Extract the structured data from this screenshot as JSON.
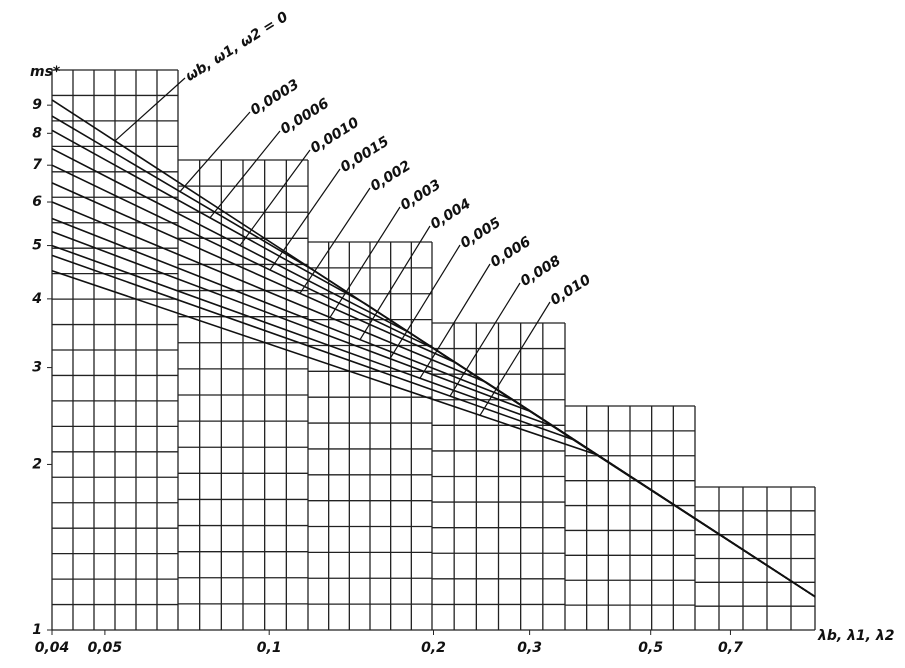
{
  "chart_data": {
    "type": "line",
    "y_label": "ms*",
    "x_label": "λb, λ1, λ2",
    "xscale": "log",
    "yscale": "log",
    "xlim": [
      0.04,
      1.0
    ],
    "ylim": [
      1,
      10
    ],
    "xticks": [
      {
        "value": 0.04,
        "label": "0,04"
      },
      {
        "value": 0.05,
        "label": "0,05"
      },
      {
        "value": 0.1,
        "label": "0,1"
      },
      {
        "value": 0.2,
        "label": "0,2"
      },
      {
        "value": 0.3,
        "label": "0,3"
      },
      {
        "value": 0.5,
        "label": "0,5"
      },
      {
        "value": 0.7,
        "label": "0,7"
      }
    ],
    "yticks": [
      1,
      2,
      3,
      4,
      5,
      6,
      7,
      8,
      9
    ],
    "series": [
      {
        "name": "ωb, ω1, ω2 = 0",
        "color": "#111111",
        "x": [
          0.04,
          1.0
        ],
        "values": [
          9.2,
          1.15
        ]
      },
      {
        "name": "0,0003",
        "color": "#111111",
        "x": [
          0.04,
          0.12,
          1.0
        ],
        "values": [
          8.6,
          4.52,
          1.15
        ]
      },
      {
        "name": "0,0006",
        "color": "#111111",
        "x": [
          0.04,
          0.15,
          1.0
        ],
        "values": [
          8.1,
          3.92,
          1.15
        ]
      },
      {
        "name": "0,0010",
        "color": "#111111",
        "x": [
          0.04,
          0.18,
          1.0
        ],
        "values": [
          7.5,
          3.48,
          1.15
        ]
      },
      {
        "name": "0,0015",
        "color": "#111111",
        "x": [
          0.04,
          0.2,
          1.0
        ],
        "values": [
          7.0,
          3.25,
          1.15
        ]
      },
      {
        "name": "0,002",
        "color": "#111111",
        "x": [
          0.04,
          0.22,
          1.0
        ],
        "values": [
          6.5,
          3.06,
          1.15
        ]
      },
      {
        "name": "0,003",
        "color": "#111111",
        "x": [
          0.04,
          0.25,
          1.0
        ],
        "values": [
          6.0,
          2.82,
          1.15
        ]
      },
      {
        "name": "0,004",
        "color": "#111111",
        "x": [
          0.04,
          0.28,
          1.0
        ],
        "values": [
          5.6,
          2.62,
          1.15
        ]
      },
      {
        "name": "0,005",
        "color": "#111111",
        "x": [
          0.04,
          0.3,
          1.0
        ],
        "values": [
          5.3,
          2.5,
          1.15
        ]
      },
      {
        "name": "0,006",
        "color": "#111111",
        "x": [
          0.04,
          0.33,
          1.0
        ],
        "values": [
          5.0,
          2.35,
          1.15
        ]
      },
      {
        "name": "0,008",
        "color": "#111111",
        "x": [
          0.04,
          0.36,
          1.0
        ],
        "values": [
          4.8,
          2.22,
          1.15
        ]
      },
      {
        "name": "0,010",
        "color": "#111111",
        "x": [
          0.04,
          0.4,
          1.0
        ],
        "values": [
          4.5,
          2.08,
          1.15
        ]
      }
    ]
  }
}
